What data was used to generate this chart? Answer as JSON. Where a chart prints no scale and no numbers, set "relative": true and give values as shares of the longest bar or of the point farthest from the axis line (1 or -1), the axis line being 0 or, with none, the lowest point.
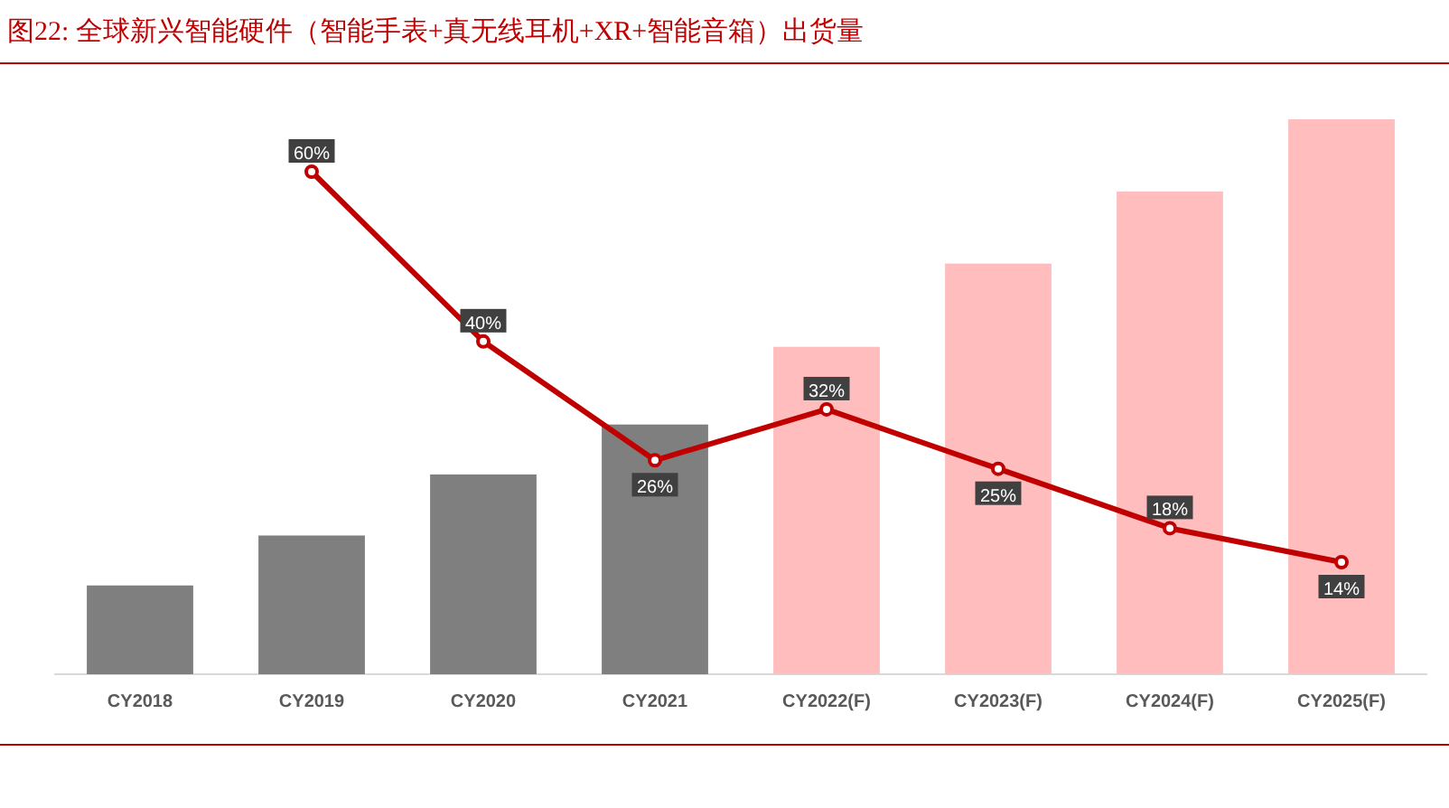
{
  "chart_data": [
    {
      "type": "bar",
      "title": "图22:   全球新兴智能硬件（智能手表+真无线耳机+XR+智能音箱）出货量",
      "relative": true,
      "categories": [
        "CY2018",
        "CY2019",
        "CY2020",
        "CY2021",
        "CY2022(F)",
        "CY2023(F)",
        "CY2024(F)",
        "CY2025(F)"
      ],
      "colors": [
        "#7f7f7f",
        "#7f7f7f",
        "#7f7f7f",
        "#7f7f7f",
        "#ffbdbd",
        "#ffbdbd",
        "#ffbdbd",
        "#ffbdbd"
      ],
      "values": [
        0.16,
        0.25,
        0.36,
        0.45,
        0.59,
        0.74,
        0.87,
        1
      ]
    },
    {
      "type": "line",
      "data_labels": true,
      "marker": "circle",
      "series": [
        {
          "color": "#c00000",
          "value_labels": [
            null,
            "60%",
            "40%",
            "26%",
            "32%",
            "25%",
            "18%",
            "14%"
          ],
          "values": [
            null,
            60,
            40,
            26,
            32,
            25,
            18,
            14
          ]
        }
      ]
    }
  ]
}
